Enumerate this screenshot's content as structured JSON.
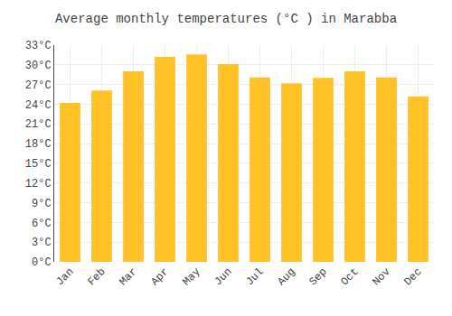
{
  "chart_data": {
    "type": "bar",
    "title": "Average monthly temperatures (°C ) in Marabba",
    "categories": [
      "Jan",
      "Feb",
      "Mar",
      "Apr",
      "May",
      "Jun",
      "Jul",
      "Aug",
      "Sep",
      "Oct",
      "Nov",
      "Dec"
    ],
    "values": [
      24.2,
      26.1,
      29.0,
      31.2,
      31.6,
      30.1,
      28.1,
      27.2,
      28.0,
      29.0,
      28.1,
      25.2
    ],
    "color": "#FFC125",
    "ylim": [
      0,
      33
    ],
    "yticks": [
      {
        "value": 0,
        "label": "0°C"
      },
      {
        "value": 3,
        "label": "3°C"
      },
      {
        "value": 6,
        "label": "6°C"
      },
      {
        "value": 9,
        "label": "9°C"
      },
      {
        "value": 12,
        "label": "12°C"
      },
      {
        "value": 15,
        "label": "15°C"
      },
      {
        "value": 18,
        "label": "18°C"
      },
      {
        "value": 21,
        "label": "21°C"
      },
      {
        "value": 24,
        "label": "24°C"
      },
      {
        "value": 27,
        "label": "27°C"
      },
      {
        "value": 30,
        "label": "30°C"
      },
      {
        "value": 33,
        "label": "33°C"
      }
    ],
    "grid": true
  }
}
